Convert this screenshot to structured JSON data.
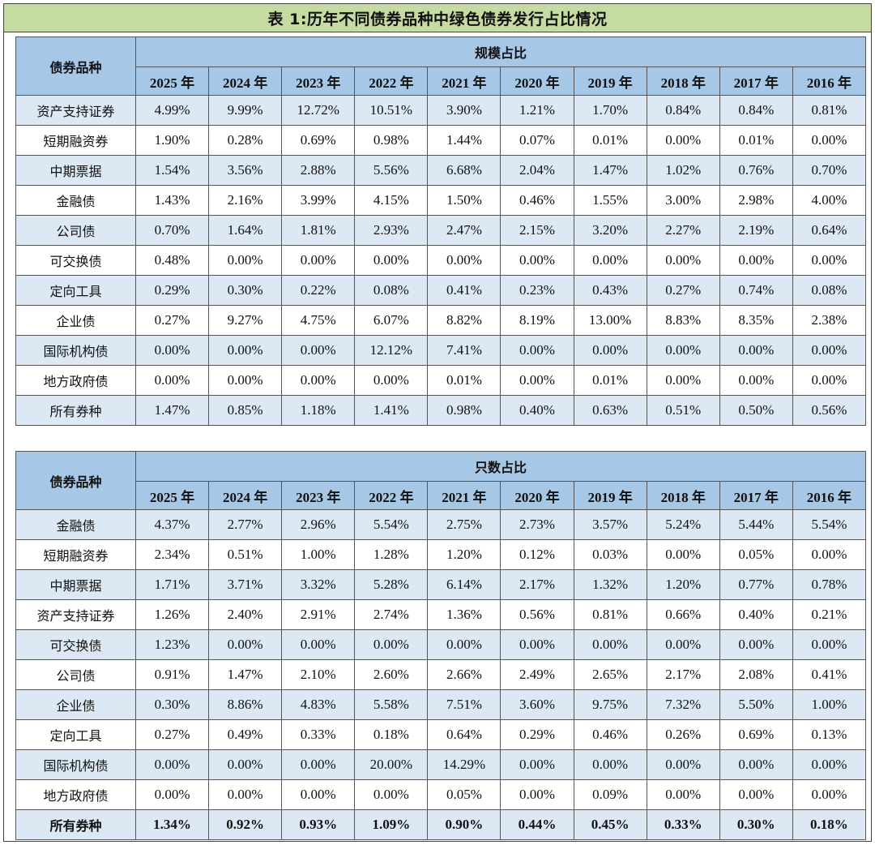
{
  "title": "表 1:历年不同债券品种中绿色债券发行占比情况",
  "table1": {
    "category_header": "债券品种",
    "group_header": "规模占比",
    "years": [
      "2025 年",
      "2024 年",
      "2023 年",
      "2022 年",
      "2021 年",
      "2020 年",
      "2019 年",
      "2018 年",
      "2017 年",
      "2016 年"
    ],
    "rows": [
      {
        "name": "资产支持证券",
        "values": [
          "4.99%",
          "9.99%",
          "12.72%",
          "10.51%",
          "3.90%",
          "1.21%",
          "1.70%",
          "0.84%",
          "0.84%",
          "0.81%"
        ]
      },
      {
        "name": "短期融资券",
        "values": [
          "1.90%",
          "0.28%",
          "0.69%",
          "0.98%",
          "1.44%",
          "0.07%",
          "0.01%",
          "0.00%",
          "0.01%",
          "0.00%"
        ]
      },
      {
        "name": "中期票据",
        "values": [
          "1.54%",
          "3.56%",
          "2.88%",
          "5.56%",
          "6.68%",
          "2.04%",
          "1.47%",
          "1.02%",
          "0.76%",
          "0.70%"
        ]
      },
      {
        "name": "金融债",
        "values": [
          "1.43%",
          "2.16%",
          "3.99%",
          "4.15%",
          "1.50%",
          "0.46%",
          "1.55%",
          "3.00%",
          "2.98%",
          "4.00%"
        ]
      },
      {
        "name": "公司债",
        "values": [
          "0.70%",
          "1.64%",
          "1.81%",
          "2.93%",
          "2.47%",
          "2.15%",
          "3.20%",
          "2.27%",
          "2.19%",
          "0.64%"
        ]
      },
      {
        "name": "可交换债",
        "values": [
          "0.48%",
          "0.00%",
          "0.00%",
          "0.00%",
          "0.00%",
          "0.00%",
          "0.00%",
          "0.00%",
          "0.00%",
          "0.00%"
        ]
      },
      {
        "name": "定向工具",
        "values": [
          "0.29%",
          "0.30%",
          "0.22%",
          "0.08%",
          "0.41%",
          "0.23%",
          "0.43%",
          "0.27%",
          "0.74%",
          "0.08%"
        ]
      },
      {
        "name": "企业债",
        "values": [
          "0.27%",
          "9.27%",
          "4.75%",
          "6.07%",
          "8.82%",
          "8.19%",
          "13.00%",
          "8.83%",
          "8.35%",
          "2.38%"
        ]
      },
      {
        "name": "国际机构债",
        "values": [
          "0.00%",
          "0.00%",
          "0.00%",
          "12.12%",
          "7.41%",
          "0.00%",
          "0.00%",
          "0.00%",
          "0.00%",
          "0.00%"
        ]
      },
      {
        "name": "地方政府债",
        "values": [
          "0.00%",
          "0.00%",
          "0.00%",
          "0.00%",
          "0.01%",
          "0.00%",
          "0.01%",
          "0.00%",
          "0.00%",
          "0.00%"
        ]
      },
      {
        "name": "所有券种",
        "values": [
          "1.47%",
          "0.85%",
          "1.18%",
          "1.41%",
          "0.98%",
          "0.40%",
          "0.63%",
          "0.51%",
          "0.50%",
          "0.56%"
        ]
      }
    ]
  },
  "table2": {
    "category_header": "债券品种",
    "group_header": "只数占比",
    "years": [
      "2025 年",
      "2024 年",
      "2023 年",
      "2022 年",
      "2021 年",
      "2020 年",
      "2019 年",
      "2018 年",
      "2017 年",
      "2016 年"
    ],
    "rows": [
      {
        "name": "金融债",
        "values": [
          "4.37%",
          "2.77%",
          "2.96%",
          "5.54%",
          "2.75%",
          "2.73%",
          "3.57%",
          "5.24%",
          "5.44%",
          "5.54%"
        ]
      },
      {
        "name": "短期融资券",
        "values": [
          "2.34%",
          "0.51%",
          "1.00%",
          "1.28%",
          "1.20%",
          "0.12%",
          "0.03%",
          "0.00%",
          "0.05%",
          "0.00%"
        ]
      },
      {
        "name": "中期票据",
        "values": [
          "1.71%",
          "3.71%",
          "3.32%",
          "5.28%",
          "6.14%",
          "2.17%",
          "1.32%",
          "1.20%",
          "0.77%",
          "0.78%"
        ]
      },
      {
        "name": "资产支持证券",
        "values": [
          "1.26%",
          "2.40%",
          "2.91%",
          "2.74%",
          "1.36%",
          "0.56%",
          "0.81%",
          "0.66%",
          "0.40%",
          "0.21%"
        ]
      },
      {
        "name": "可交换债",
        "values": [
          "1.23%",
          "0.00%",
          "0.00%",
          "0.00%",
          "0.00%",
          "0.00%",
          "0.00%",
          "0.00%",
          "0.00%",
          "0.00%"
        ]
      },
      {
        "name": "公司债",
        "values": [
          "0.91%",
          "1.47%",
          "2.10%",
          "2.60%",
          "2.66%",
          "2.49%",
          "2.65%",
          "2.17%",
          "2.08%",
          "0.41%"
        ]
      },
      {
        "name": "企业债",
        "values": [
          "0.30%",
          "8.86%",
          "4.83%",
          "5.58%",
          "7.51%",
          "3.60%",
          "9.75%",
          "7.32%",
          "5.50%",
          "1.00%"
        ]
      },
      {
        "name": "定向工具",
        "values": [
          "0.27%",
          "0.49%",
          "0.33%",
          "0.18%",
          "0.64%",
          "0.29%",
          "0.46%",
          "0.26%",
          "0.69%",
          "0.13%"
        ]
      },
      {
        "name": "国际机构债",
        "values": [
          "0.00%",
          "0.00%",
          "0.00%",
          "20.00%",
          "14.29%",
          "0.00%",
          "0.00%",
          "0.00%",
          "0.00%",
          "0.00%"
        ]
      },
      {
        "name": "地方政府债",
        "values": [
          "0.00%",
          "0.00%",
          "0.00%",
          "0.00%",
          "0.05%",
          "0.00%",
          "0.09%",
          "0.00%",
          "0.00%",
          "0.00%"
        ]
      },
      {
        "name": "所有券种",
        "values": [
          "1.34%",
          "0.92%",
          "0.93%",
          "1.09%",
          "0.90%",
          "0.44%",
          "0.45%",
          "0.33%",
          "0.30%",
          "0.18%"
        ]
      }
    ]
  }
}
